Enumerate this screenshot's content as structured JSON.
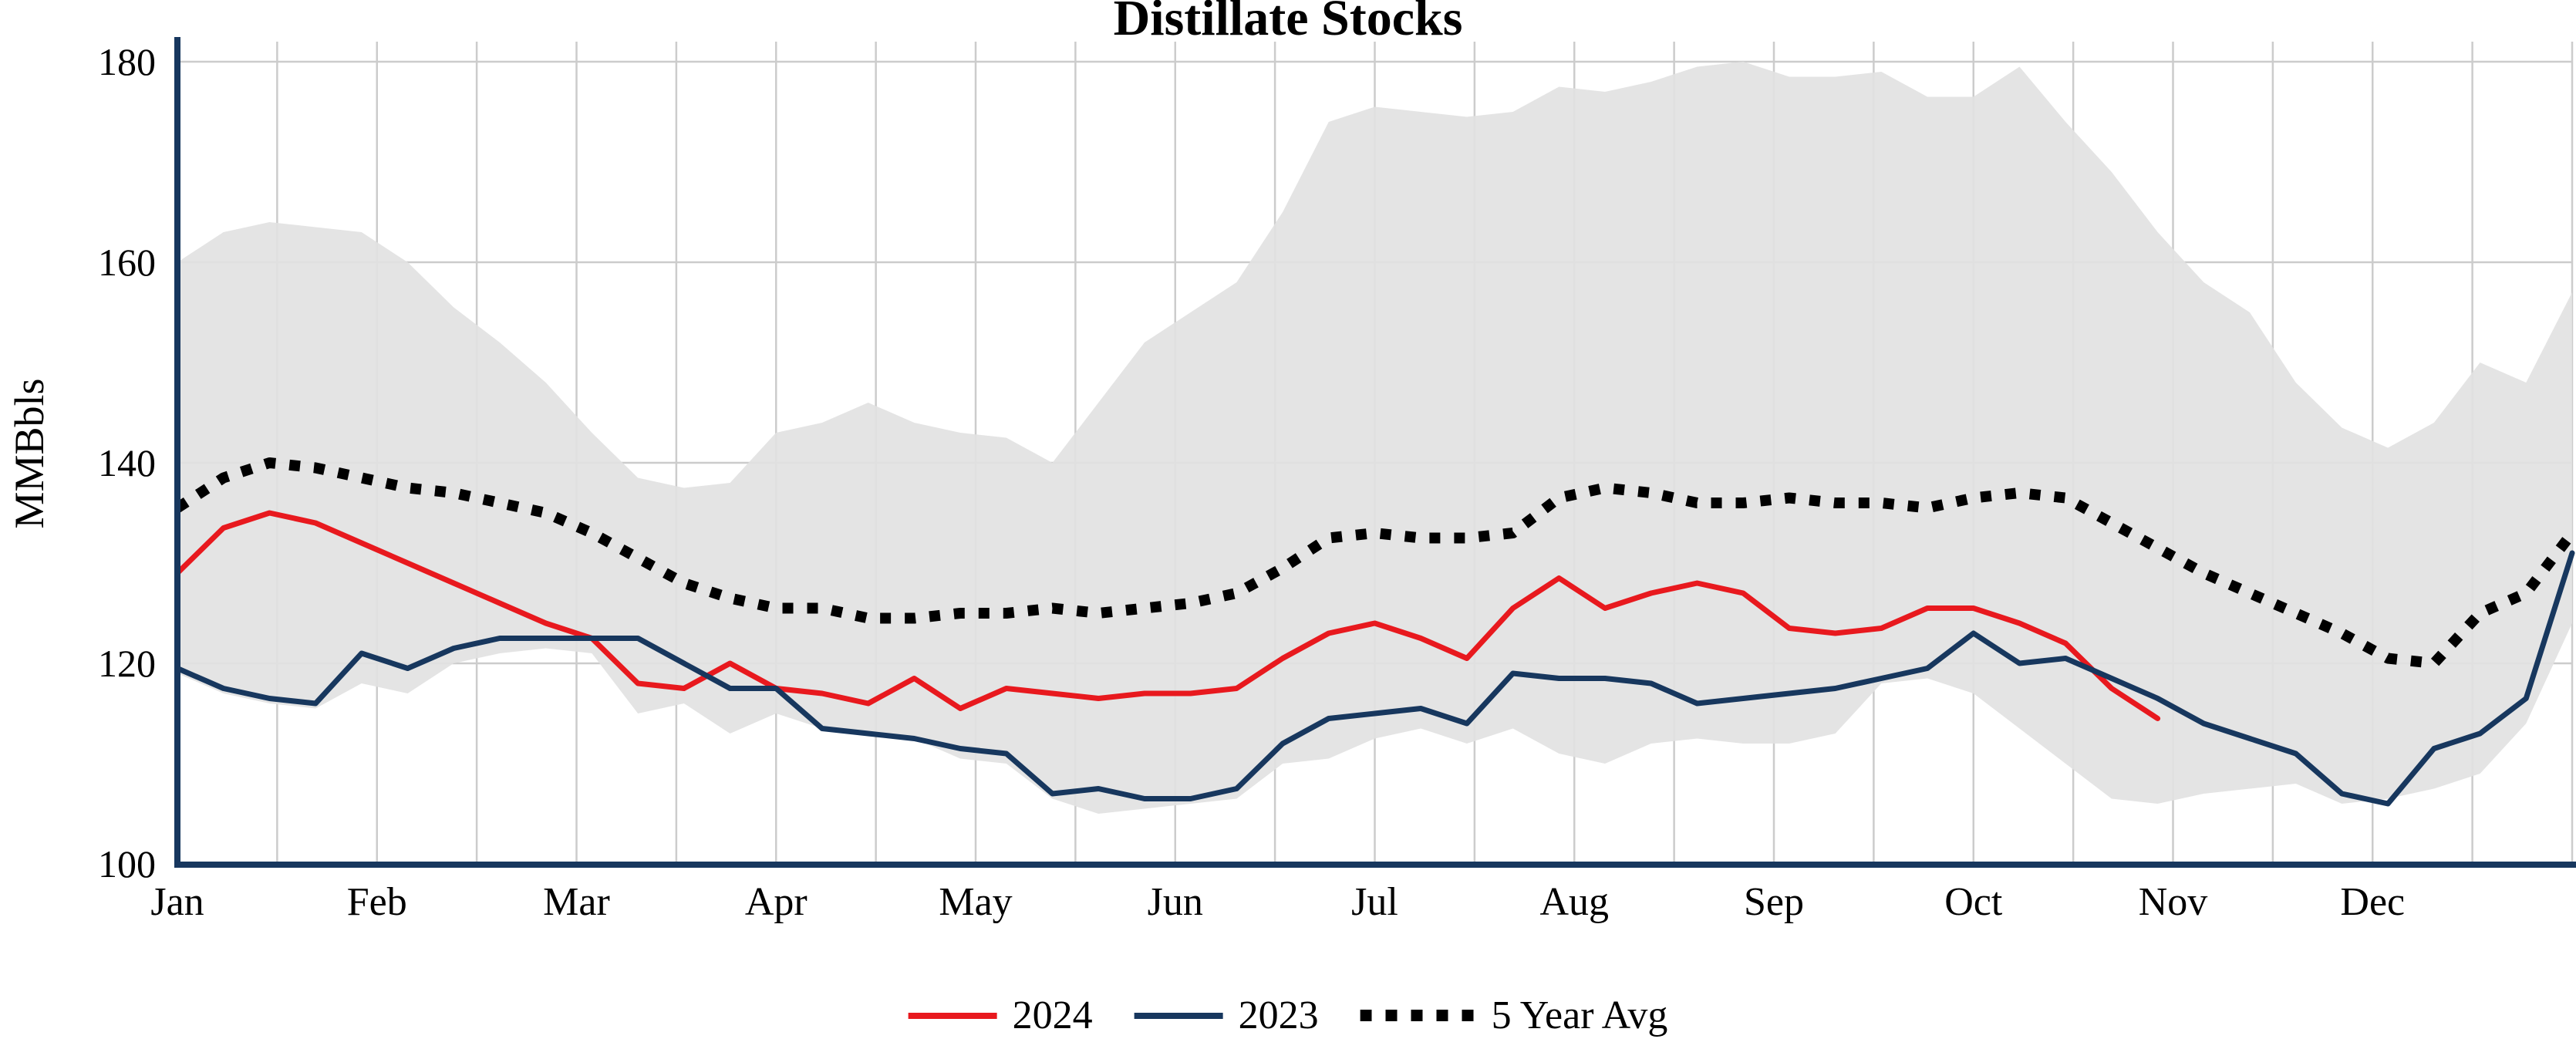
{
  "chart_data": {
    "type": "line",
    "title": "Distillate Stocks",
    "ylabel": "MMBbls",
    "xlabel": "",
    "ylim": [
      100,
      180
    ],
    "y_ticks": [
      100,
      120,
      140,
      160,
      180
    ],
    "x_tick_labels": [
      "Jan",
      "Feb",
      "Mar",
      "Apr",
      "May",
      "Jun",
      "Jul",
      "Aug",
      "Sep",
      "Oct",
      "Nov",
      "Dec"
    ],
    "x_weeks": 52,
    "x_unit": "week of year",
    "grid": true,
    "legend_position": "bottom",
    "grid_color": "#cccccc",
    "axis_color": "#17375e",
    "band": {
      "color": "#e2e2e2",
      "upper": [
        160,
        163,
        164,
        163.5,
        163,
        160,
        155.5,
        152,
        148,
        143,
        138.5,
        137.5,
        138,
        143,
        144,
        146,
        144,
        143,
        142.5,
        140,
        146,
        152,
        155,
        158,
        165,
        174,
        175.5,
        175,
        174.5,
        175,
        177.5,
        177,
        178,
        179.5,
        180,
        178.5,
        178.5,
        179,
        176.5,
        176.5,
        179.5,
        174,
        169,
        163,
        158,
        155,
        148,
        143.5,
        141.5,
        144,
        150,
        148,
        157
      ],
      "lower": [
        119,
        117,
        116,
        115.5,
        118,
        117,
        120,
        121,
        121.5,
        121,
        115,
        116,
        113,
        115,
        113.5,
        113,
        112.5,
        110.5,
        110,
        106.5,
        105,
        105.5,
        106,
        106.5,
        110,
        110.5,
        112.5,
        113.5,
        112,
        113.5,
        111,
        110,
        112,
        112.5,
        112,
        112,
        113,
        118,
        118.5,
        117,
        113.5,
        110,
        106.5,
        106,
        107,
        107.5,
        108,
        106,
        106.5,
        107.5,
        109,
        114,
        124
      ]
    },
    "series": [
      {
        "name": "2024",
        "color": "#e8191e",
        "style": "solid",
        "values": [
          129,
          133.5,
          135,
          134,
          132,
          130,
          128,
          126,
          124,
          122.5,
          118,
          117.5,
          120,
          117.5,
          117,
          116,
          118.5,
          115.5,
          117.5,
          117,
          116.5,
          117,
          117,
          117.5,
          120.5,
          123,
          124,
          122.5,
          120.5,
          125.5,
          128.5,
          125.5,
          127,
          128,
          127,
          123.5,
          123,
          123.5,
          125.5,
          125.5,
          124,
          122,
          117.5,
          114.5
        ]
      },
      {
        "name": "2023",
        "color": "#17375e",
        "style": "solid",
        "values": [
          119.5,
          117.5,
          116.5,
          116,
          121,
          119.5,
          121.5,
          122.5,
          122.5,
          122.5,
          122.5,
          120,
          117.5,
          117.5,
          113.5,
          113,
          112.5,
          111.5,
          111,
          107,
          107.5,
          106.5,
          106.5,
          107.5,
          112,
          114.5,
          115,
          115.5,
          114,
          119,
          118.5,
          118.5,
          118,
          116,
          116.5,
          117,
          117.5,
          118.5,
          119.5,
          123,
          120,
          120.5,
          118.5,
          116.5,
          114,
          112.5,
          111,
          107,
          106,
          111.5,
          113,
          116.5,
          131
        ]
      },
      {
        "name": "5 Year Avg",
        "color": "#000000",
        "style": "dotted",
        "values": [
          135.5,
          138.5,
          140,
          139.5,
          138.5,
          137.5,
          137,
          136,
          135,
          133,
          130.5,
          128,
          126.5,
          125.5,
          125.5,
          124.5,
          124.5,
          125,
          125,
          125.5,
          125,
          125.5,
          126,
          127,
          129.5,
          132.5,
          133,
          132.5,
          132.5,
          133,
          136.5,
          137.5,
          137,
          136,
          136,
          136.5,
          136,
          136,
          135.5,
          136.5,
          137,
          136.5,
          134,
          131.5,
          129,
          127,
          125,
          123,
          120.5,
          120,
          125,
          127,
          133
        ]
      }
    ]
  }
}
